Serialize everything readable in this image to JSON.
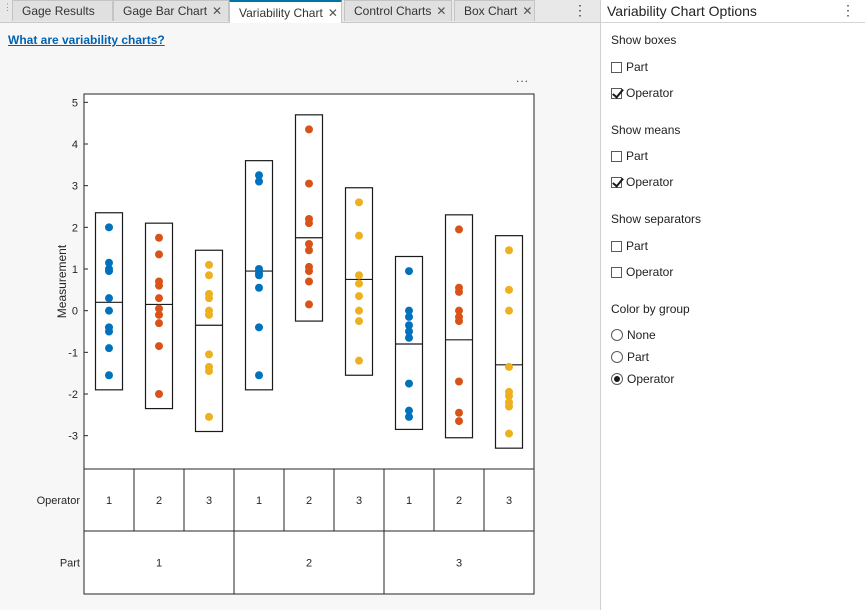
{
  "tabs": [
    {
      "label": "Gage Results",
      "closable": false
    },
    {
      "label": "Gage Bar Chart",
      "closable": true
    },
    {
      "label": "Variability Chart",
      "closable": true,
      "active": true
    },
    {
      "label": "Control Charts",
      "closable": true
    },
    {
      "label": "Box Chart",
      "closable": true
    }
  ],
  "help_link": "What are variability charts?",
  "plot_menu": "...",
  "chart_data": {
    "type": "scatter",
    "ylabel": "Measurement",
    "ylim": [
      -3.8,
      5.2
    ],
    "yticks": [
      -3,
      -2,
      -1,
      0,
      1,
      2,
      3,
      4,
      5
    ],
    "group_rows": [
      {
        "label": "Operator",
        "values": [
          "1",
          "2",
          "3",
          "1",
          "2",
          "3",
          "1",
          "2",
          "3"
        ]
      },
      {
        "label": "Part",
        "values": [
          "1",
          "2",
          "3"
        ]
      }
    ],
    "groups": [
      {
        "part": "1",
        "operator": "1",
        "color": "#0072bd",
        "box": [
          -1.9,
          2.35
        ],
        "mean": 0.2,
        "values": [
          2.0,
          1.15,
          1.0,
          0.95,
          0.3,
          0.0,
          -0.4,
          -0.5,
          -0.9,
          -1.55
        ]
      },
      {
        "part": "1",
        "operator": "2",
        "color": "#d95319",
        "box": [
          -2.35,
          2.1
        ],
        "mean": 0.15,
        "values": [
          1.75,
          1.35,
          0.7,
          0.6,
          0.3,
          0.05,
          -0.1,
          -0.3,
          -0.85,
          -2.0
        ]
      },
      {
        "part": "1",
        "operator": "3",
        "color": "#edb120",
        "box": [
          -2.9,
          1.45
        ],
        "mean": -0.35,
        "values": [
          1.1,
          0.85,
          0.4,
          0.3,
          0.0,
          -0.1,
          -1.05,
          -1.35,
          -1.45,
          -2.55
        ]
      },
      {
        "part": "2",
        "operator": "1",
        "color": "#0072bd",
        "box": [
          -1.9,
          3.6
        ],
        "mean": 0.95,
        "values": [
          3.25,
          3.1,
          1.0,
          0.9,
          0.85,
          0.55,
          -0.4,
          -1.55
        ]
      },
      {
        "part": "2",
        "operator": "2",
        "color": "#d95319",
        "box": [
          -0.25,
          4.7
        ],
        "mean": 1.75,
        "values": [
          4.35,
          3.05,
          2.2,
          2.1,
          1.6,
          1.45,
          1.05,
          0.95,
          0.7,
          0.15
        ]
      },
      {
        "part": "2",
        "operator": "3",
        "color": "#edb120",
        "box": [
          -1.55,
          2.95
        ],
        "mean": 0.75,
        "values": [
          2.6,
          1.8,
          0.85,
          0.65,
          0.35,
          0.0,
          -0.25,
          -1.2
        ]
      },
      {
        "part": "3",
        "operator": "1",
        "color": "#0072bd",
        "box": [
          -2.85,
          1.3
        ],
        "mean": -0.8,
        "values": [
          0.95,
          0.0,
          -0.15,
          -0.35,
          -0.5,
          -0.65,
          -1.75,
          -2.4,
          -2.55
        ]
      },
      {
        "part": "3",
        "operator": "2",
        "color": "#d95319",
        "box": [
          -3.05,
          2.3
        ],
        "mean": -0.7,
        "values": [
          1.95,
          0.55,
          0.45,
          0.0,
          -0.15,
          -0.25,
          -1.7,
          -2.45,
          -2.65
        ]
      },
      {
        "part": "3",
        "operator": "3",
        "color": "#edb120",
        "box": [
          -3.3,
          1.8
        ],
        "mean": -1.3,
        "values": [
          1.45,
          0.5,
          0.0,
          -1.35,
          -1.95,
          -2.05,
          -2.2,
          -2.3,
          -2.95
        ]
      }
    ]
  },
  "options_panel": {
    "title": "Variability Chart Options",
    "sections": [
      {
        "label": "Show boxes",
        "type": "checkbox",
        "options": [
          {
            "label": "Part",
            "checked": false
          },
          {
            "label": "Operator",
            "checked": true
          }
        ]
      },
      {
        "label": "Show means",
        "type": "checkbox",
        "options": [
          {
            "label": "Part",
            "checked": false
          },
          {
            "label": "Operator",
            "checked": true
          }
        ]
      },
      {
        "label": "Show separators",
        "type": "checkbox",
        "options": [
          {
            "label": "Part",
            "checked": false
          },
          {
            "label": "Operator",
            "checked": false
          }
        ]
      },
      {
        "label": "Color by group",
        "type": "radio",
        "options": [
          {
            "label": "None",
            "checked": false
          },
          {
            "label": "Part",
            "checked": false
          },
          {
            "label": "Operator",
            "checked": true
          }
        ]
      }
    ]
  }
}
